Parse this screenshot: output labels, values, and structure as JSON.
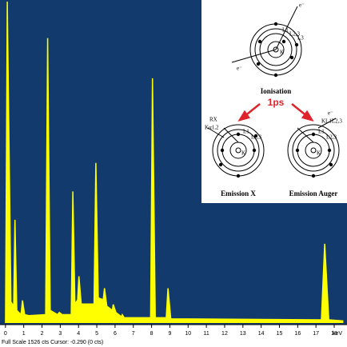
{
  "chart_data": {
    "type": "line",
    "color": "#ffff00",
    "background": "#123a6c",
    "x_label": "keV",
    "status": "Full Scale 1526 cts Cursor: -0.290 (0 cts)",
    "x": [
      0,
      0.1,
      0.3,
      0.45,
      0.52,
      0.62,
      0.85,
      0.93,
      1.05,
      1.3,
      2.2,
      2.31,
      2.45,
      2.85,
      2.95,
      3.1,
      3.6,
      3.69,
      3.8,
      3.95,
      4.02,
      4.15,
      4.85,
      4.95,
      5.08,
      5.35,
      5.42,
      5.55,
      5.85,
      5.9,
      6.05,
      6.35,
      6.4,
      6.5,
      7.95,
      8.05,
      8.2,
      8.8,
      8.9,
      9.05,
      17.3,
      17.48,
      17.7,
      18.5
    ],
    "values": [
      0,
      1526,
      100,
      80,
      490,
      60,
      40,
      107,
      40,
      35,
      40,
      1353,
      60,
      40,
      50,
      40,
      40,
      625,
      90,
      110,
      222,
      90,
      90,
      760,
      120,
      110,
      165,
      80,
      60,
      88,
      50,
      30,
      40,
      25,
      25,
      1162,
      25,
      25,
      165,
      20,
      15,
      376,
      15,
      10
    ],
    "xlim": [
      -0.3,
      18.7
    ],
    "ylim": [
      0,
      1526
    ],
    "xticks": [
      0,
      1,
      2,
      3,
      4,
      5,
      6,
      7,
      8,
      9,
      10,
      11,
      12,
      13,
      14,
      15,
      16,
      17,
      18
    ]
  },
  "inset": {
    "electron": "e⁻",
    "top_label": "Ionisation",
    "time": "1ps",
    "left_label": "Emission X",
    "right_label": "Emission Auger",
    "rx": "RX",
    "k_alpha": "Kα1,2",
    "auger": "KL1L2,3",
    "shells": {
      "k": "K",
      "l1": "L1",
      "l23": "L2,3",
      "l3": "L3"
    }
  }
}
